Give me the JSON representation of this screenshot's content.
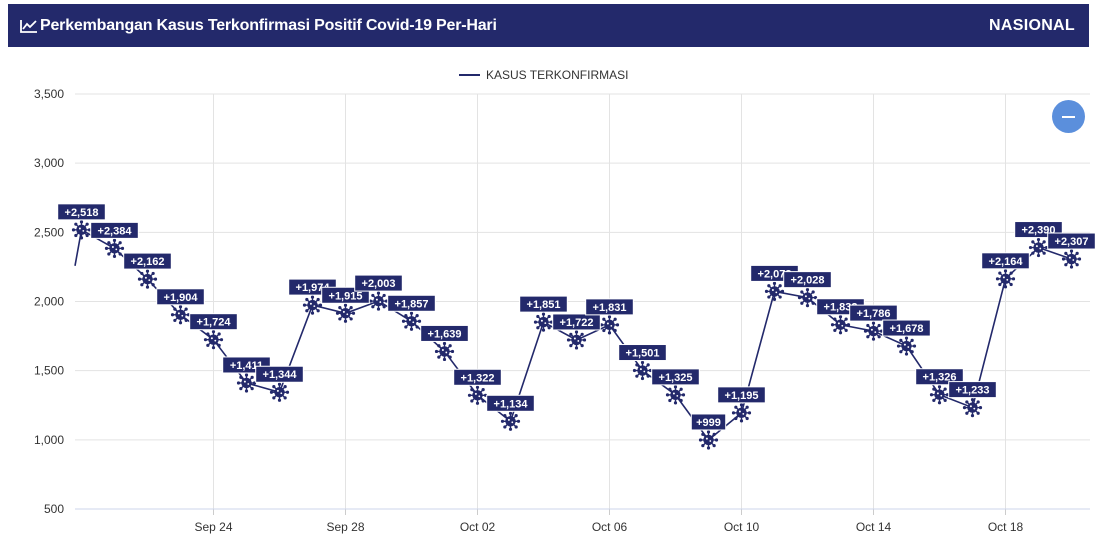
{
  "header": {
    "title": "Perkembangan Kasus Terkonfirmasi Positif Covid-19 Per-Hari",
    "region": "NASIONAL",
    "bg_color": "#23296b"
  },
  "zoom_button": {
    "icon": "minus-icon",
    "color": "#5b8fdc"
  },
  "chart_data": {
    "type": "line",
    "legend": {
      "label": "KASUS TERKONFIRMASI",
      "position": "top-center"
    },
    "ylim": [
      500,
      3500
    ],
    "yticks": [
      500,
      1000,
      1500,
      2000,
      2500,
      3000,
      3500
    ],
    "ytick_labels": [
      "500",
      "1,000",
      "1,500",
      "2,000",
      "2,500",
      "3,000",
      "3,500"
    ],
    "xticks": [
      {
        "label": "Sep 24",
        "index": 4
      },
      {
        "label": "Sep 28",
        "index": 8
      },
      {
        "label": "Oct 02",
        "index": 12
      },
      {
        "label": "Oct 06",
        "index": 16
      },
      {
        "label": "Oct 10",
        "index": 20
      },
      {
        "label": "Oct 14",
        "index": 24
      },
      {
        "label": "Oct 18",
        "index": 28
      }
    ],
    "grid": true,
    "series": [
      {
        "name": "KASUS TERKONFIRMASI",
        "color": "#23296b",
        "marker": "virus-icon",
        "points": [
          {
            "y": 2518,
            "label": "+2,518"
          },
          {
            "y": 2384,
            "label": "+2,384"
          },
          {
            "y": 2162,
            "label": "+2,162"
          },
          {
            "y": 1904,
            "label": "+1,904"
          },
          {
            "y": 1724,
            "label": "+1,724"
          },
          {
            "y": 1411,
            "label": "+1,411"
          },
          {
            "y": 1344,
            "label": "+1,344"
          },
          {
            "y": 1974,
            "label": "+1,974"
          },
          {
            "y": 1915,
            "label": "+1,915"
          },
          {
            "y": 2003,
            "label": "+2,003"
          },
          {
            "y": 1857,
            "label": "+1,857"
          },
          {
            "y": 1639,
            "label": "+1,639"
          },
          {
            "y": 1322,
            "label": "+1,322"
          },
          {
            "y": 1134,
            "label": "+1,134"
          },
          {
            "y": 1851,
            "label": "+1,851"
          },
          {
            "y": 1722,
            "label": "+1,722"
          },
          {
            "y": 1831,
            "label": "+1,831"
          },
          {
            "y": 1501,
            "label": "+1,501"
          },
          {
            "y": 1325,
            "label": "+1,325"
          },
          {
            "y": 999,
            "label": "+999"
          },
          {
            "y": 1195,
            "label": "+1,195"
          },
          {
            "y": 2073,
            "label": "+2,073"
          },
          {
            "y": 2028,
            "label": "+2,028"
          },
          {
            "y": 1832,
            "label": "+1,832"
          },
          {
            "y": 1786,
            "label": "+1,786"
          },
          {
            "y": 1678,
            "label": "+1,678"
          },
          {
            "y": 1326,
            "label": "+1,326"
          },
          {
            "y": 1233,
            "label": "+1,233"
          },
          {
            "y": 2164,
            "label": "+2,164"
          },
          {
            "y": 2390,
            "label": "+2,390"
          },
          {
            "y": 2307,
            "label": "+2,307"
          }
        ],
        "prior_point": 2258
      }
    ]
  }
}
